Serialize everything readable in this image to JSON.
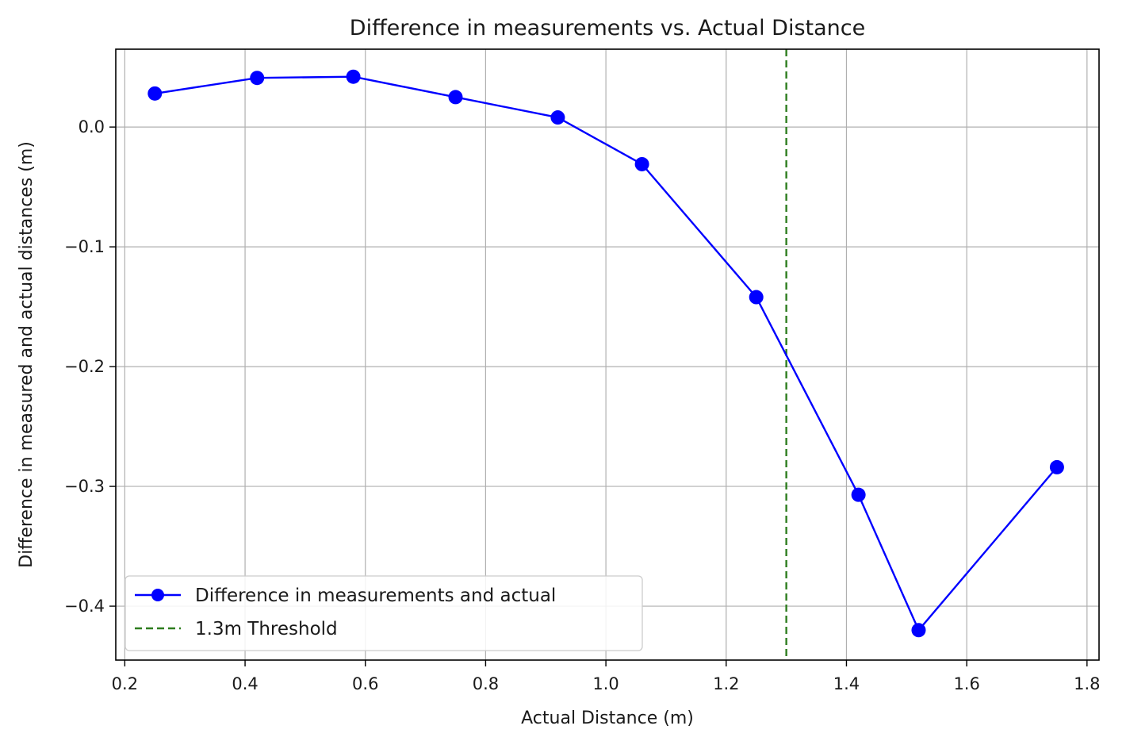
{
  "chart_data": {
    "type": "line",
    "title": "Difference in measurements vs. Actual Distance",
    "xlabel": "Actual Distance (m)",
    "ylabel": "Difference in measured and actual distances (m)",
    "xlim": [
      0.185,
      1.82
    ],
    "ylim": [
      -0.445,
      0.065
    ],
    "xticks": [
      0.2,
      0.4,
      0.6,
      0.8,
      1.0,
      1.2,
      1.4,
      1.6,
      1.8
    ],
    "xtick_labels": [
      "0.2",
      "0.4",
      "0.6",
      "0.8",
      "1.0",
      "1.2",
      "1.4",
      "1.6",
      "1.8"
    ],
    "yticks": [
      0.0,
      -0.1,
      -0.2,
      -0.3,
      -0.4
    ],
    "ytick_labels": [
      "0.0",
      "−0.1",
      "−0.2",
      "−0.3",
      "−0.4"
    ],
    "grid": true,
    "legend_position": "lower-left",
    "series": [
      {
        "name": "Difference in measurements and actual",
        "color": "#0000ff",
        "marker": "circle",
        "x": [
          0.25,
          0.42,
          0.58,
          0.75,
          0.92,
          1.06,
          1.25,
          1.42,
          1.52,
          1.75
        ],
        "y": [
          0.028,
          0.041,
          0.042,
          0.025,
          0.008,
          -0.031,
          -0.142,
          -0.307,
          -0.42,
          -0.284
        ]
      }
    ],
    "threshold": {
      "name": "1.3m Threshold",
      "x": 1.3,
      "color": "#2e7d1f",
      "style": "dashed"
    }
  }
}
